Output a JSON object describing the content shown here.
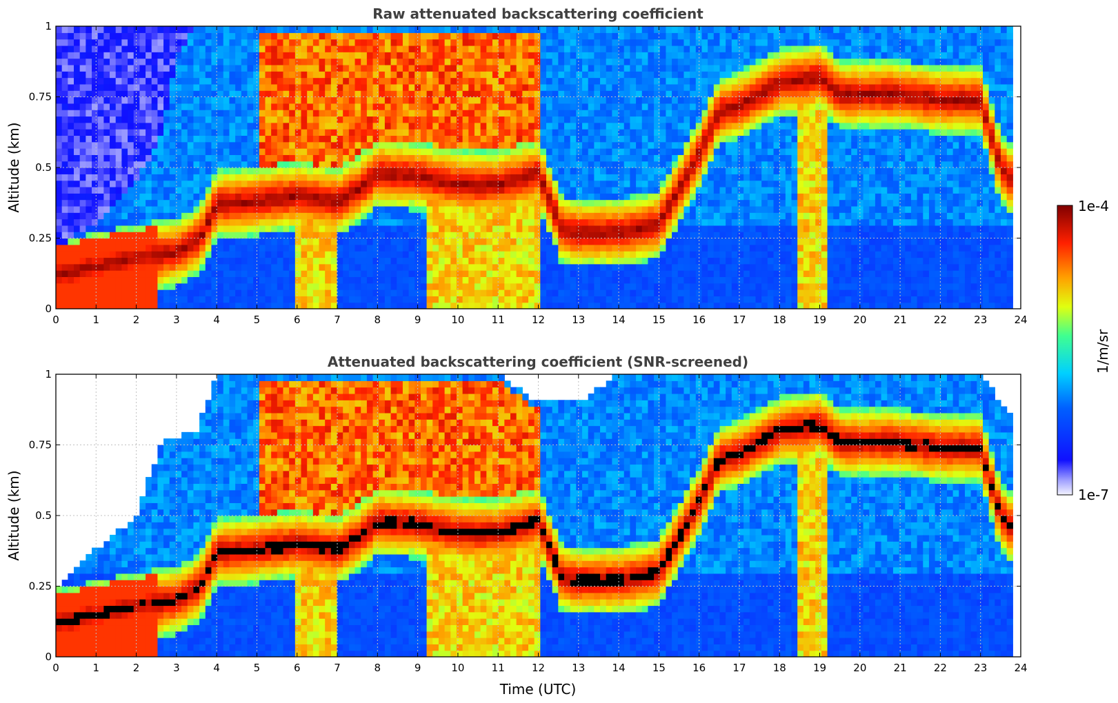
{
  "chart_data": [
    {
      "type": "heatmap",
      "title": "Raw attenuated backscattering coefficient",
      "xlabel": "",
      "ylabel": "Altitude (km)",
      "xlim": [
        0,
        24
      ],
      "ylim": [
        0,
        1
      ],
      "xticks": [
        "0",
        "1",
        "2",
        "3",
        "4",
        "5",
        "6",
        "7",
        "8",
        "9",
        "10",
        "11",
        "12",
        "13",
        "14",
        "15",
        "16",
        "17",
        "18",
        "19",
        "20",
        "21",
        "22",
        "23",
        "24"
      ],
      "yticks": [
        "0",
        "0.25",
        "0.5",
        "0.75",
        "1"
      ],
      "grid": true,
      "screened": false,
      "layers": {
        "cloud_top_km": [
          [
            0,
            0.22
          ],
          [
            1,
            0.3
          ],
          [
            2,
            0.45
          ],
          [
            2.6,
            0.6
          ],
          [
            3,
            0.9
          ],
          [
            3.5,
            1
          ],
          [
            4,
            1
          ],
          [
            5,
            1
          ],
          [
            6,
            1
          ],
          [
            7,
            1
          ],
          [
            8,
            1
          ],
          [
            9,
            1
          ],
          [
            10,
            1
          ],
          [
            11,
            1
          ],
          [
            12,
            1
          ],
          [
            13,
            1
          ],
          [
            14,
            1
          ],
          [
            15,
            1
          ],
          [
            16,
            1
          ],
          [
            17,
            1
          ],
          [
            18,
            1
          ],
          [
            19,
            1
          ],
          [
            20,
            1
          ],
          [
            21,
            1
          ],
          [
            22,
            1
          ],
          [
            23,
            1
          ],
          [
            23.8,
            1
          ]
        ],
        "dense_layer_km": [
          [
            0,
            0.12
          ],
          [
            1,
            0.15
          ],
          [
            2,
            0.18
          ],
          [
            3,
            0.2
          ],
          [
            3.6,
            0.25
          ],
          [
            4,
            0.37
          ],
          [
            5,
            0.38
          ],
          [
            6,
            0.4
          ],
          [
            7,
            0.38
          ],
          [
            7.5,
            0.42
          ],
          [
            8,
            0.48
          ],
          [
            9,
            0.47
          ],
          [
            10,
            0.44
          ],
          [
            11,
            0.44
          ],
          [
            12,
            0.48
          ],
          [
            12.6,
            0.28
          ],
          [
            13,
            0.27
          ],
          [
            14,
            0.27
          ],
          [
            15,
            0.3
          ],
          [
            15.6,
            0.45
          ],
          [
            16,
            0.55
          ],
          [
            16.5,
            0.7
          ],
          [
            17,
            0.72
          ],
          [
            18,
            0.8
          ],
          [
            19,
            0.82
          ],
          [
            19.5,
            0.76
          ],
          [
            20,
            0.76
          ],
          [
            21,
            0.76
          ],
          [
            22,
            0.74
          ],
          [
            23,
            0.74
          ],
          [
            23.5,
            0.5
          ],
          [
            23.8,
            0.45
          ]
        ]
      }
    },
    {
      "type": "heatmap",
      "title": "Attenuated backscattering coefficient (SNR-screened)",
      "xlabel": "Time (UTC)",
      "ylabel": "Altitude (km)",
      "xlim": [
        0,
        24
      ],
      "ylim": [
        0,
        1
      ],
      "xticks": [
        "0",
        "1",
        "2",
        "3",
        "4",
        "5",
        "6",
        "7",
        "8",
        "9",
        "10",
        "11",
        "12",
        "13",
        "14",
        "15",
        "16",
        "17",
        "18",
        "19",
        "20",
        "21",
        "22",
        "23",
        "24"
      ],
      "yticks": [
        "0",
        "0.25",
        "0.5",
        "0.75",
        "1"
      ],
      "grid": true,
      "screened": true,
      "saturated_color": "#000000",
      "layers": {
        "cloud_top_km": [
          [
            0,
            0.25
          ],
          [
            1,
            0.38
          ],
          [
            2,
            0.5
          ],
          [
            2.6,
            0.75
          ],
          [
            3,
            0.78
          ],
          [
            3.5,
            0.8
          ],
          [
            4,
            1
          ],
          [
            5,
            1
          ],
          [
            6,
            1
          ],
          [
            7,
            1
          ],
          [
            8,
            1
          ],
          [
            9,
            1
          ],
          [
            10,
            1
          ],
          [
            11,
            1
          ],
          [
            12,
            0.9
          ],
          [
            13,
            0.9
          ],
          [
            14,
            1
          ],
          [
            15,
            1
          ],
          [
            16,
            1
          ],
          [
            17,
            1
          ],
          [
            18,
            1
          ],
          [
            19,
            1
          ],
          [
            20,
            1
          ],
          [
            21,
            1
          ],
          [
            22,
            1
          ],
          [
            23,
            1
          ],
          [
            23.8,
            0.85
          ]
        ],
        "dense_layer_km": [
          [
            0,
            0.12
          ],
          [
            1,
            0.15
          ],
          [
            2,
            0.18
          ],
          [
            3,
            0.2
          ],
          [
            3.6,
            0.25
          ],
          [
            4,
            0.37
          ],
          [
            5,
            0.38
          ],
          [
            6,
            0.4
          ],
          [
            7,
            0.38
          ],
          [
            7.5,
            0.42
          ],
          [
            8,
            0.48
          ],
          [
            9,
            0.47
          ],
          [
            10,
            0.44
          ],
          [
            11,
            0.44
          ],
          [
            12,
            0.48
          ],
          [
            12.6,
            0.28
          ],
          [
            13,
            0.27
          ],
          [
            14,
            0.27
          ],
          [
            15,
            0.3
          ],
          [
            15.6,
            0.45
          ],
          [
            16,
            0.55
          ],
          [
            16.5,
            0.7
          ],
          [
            17,
            0.72
          ],
          [
            18,
            0.8
          ],
          [
            19,
            0.82
          ],
          [
            19.5,
            0.76
          ],
          [
            20,
            0.76
          ],
          [
            21,
            0.76
          ],
          [
            22,
            0.74
          ],
          [
            23,
            0.74
          ],
          [
            23.5,
            0.5
          ],
          [
            23.8,
            0.45
          ]
        ]
      }
    }
  ],
  "colorbar": {
    "label": "1/m/sr",
    "max_label": "1e-4",
    "min_label": "1e-7",
    "colormap": "jet",
    "scale": "log",
    "range": [
      1e-07,
      0.0001
    ]
  },
  "colors": {
    "title": "#404040",
    "grid": "#c0c0c0",
    "axis": "#000000",
    "no_data": "#ffffff",
    "saturated": "#000000"
  }
}
